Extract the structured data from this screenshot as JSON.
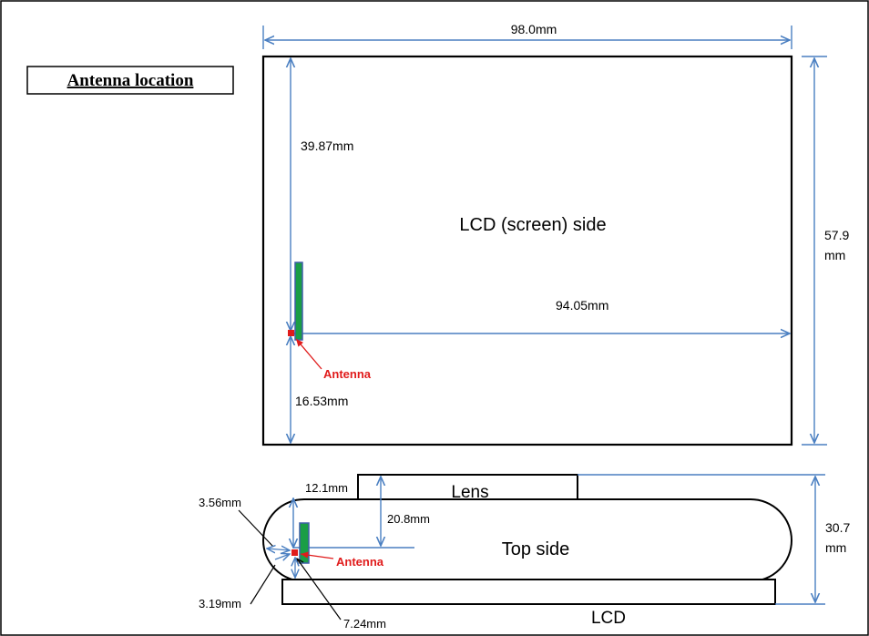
{
  "title": "Antenna location",
  "screen_view": {
    "label": "LCD (screen) side",
    "width_dim": "98.0mm",
    "height_dim_line1": "57.9",
    "height_dim_line2": "mm",
    "antenna_to_top_dim": "39.87mm",
    "antenna_to_right_dim": "94.05mm",
    "antenna_to_bottom_dim": "16.53mm",
    "antenna_label": "Antenna"
  },
  "top_view": {
    "label": "Top side",
    "lens_label": "Lens",
    "lcd_label": "LCD",
    "lens_width_dim": "12.1mm",
    "lens_depth_dim": "20.8mm",
    "thickness_dim_line1": "30.7",
    "thickness_dim_line2": "mm",
    "left_upper_dim": "3.56mm",
    "left_lower_dim": "3.19mm",
    "bottom_dim": "7.24mm",
    "antenna_label": "Antenna"
  },
  "colors": {
    "outline": "#000000",
    "dimension_line": "#4a7fc1",
    "antenna_text": "#e01b1b",
    "antenna_body": "#1a9e46",
    "antenna_border": "#3f5fa8",
    "antenna_marker": "#e01b1b"
  }
}
